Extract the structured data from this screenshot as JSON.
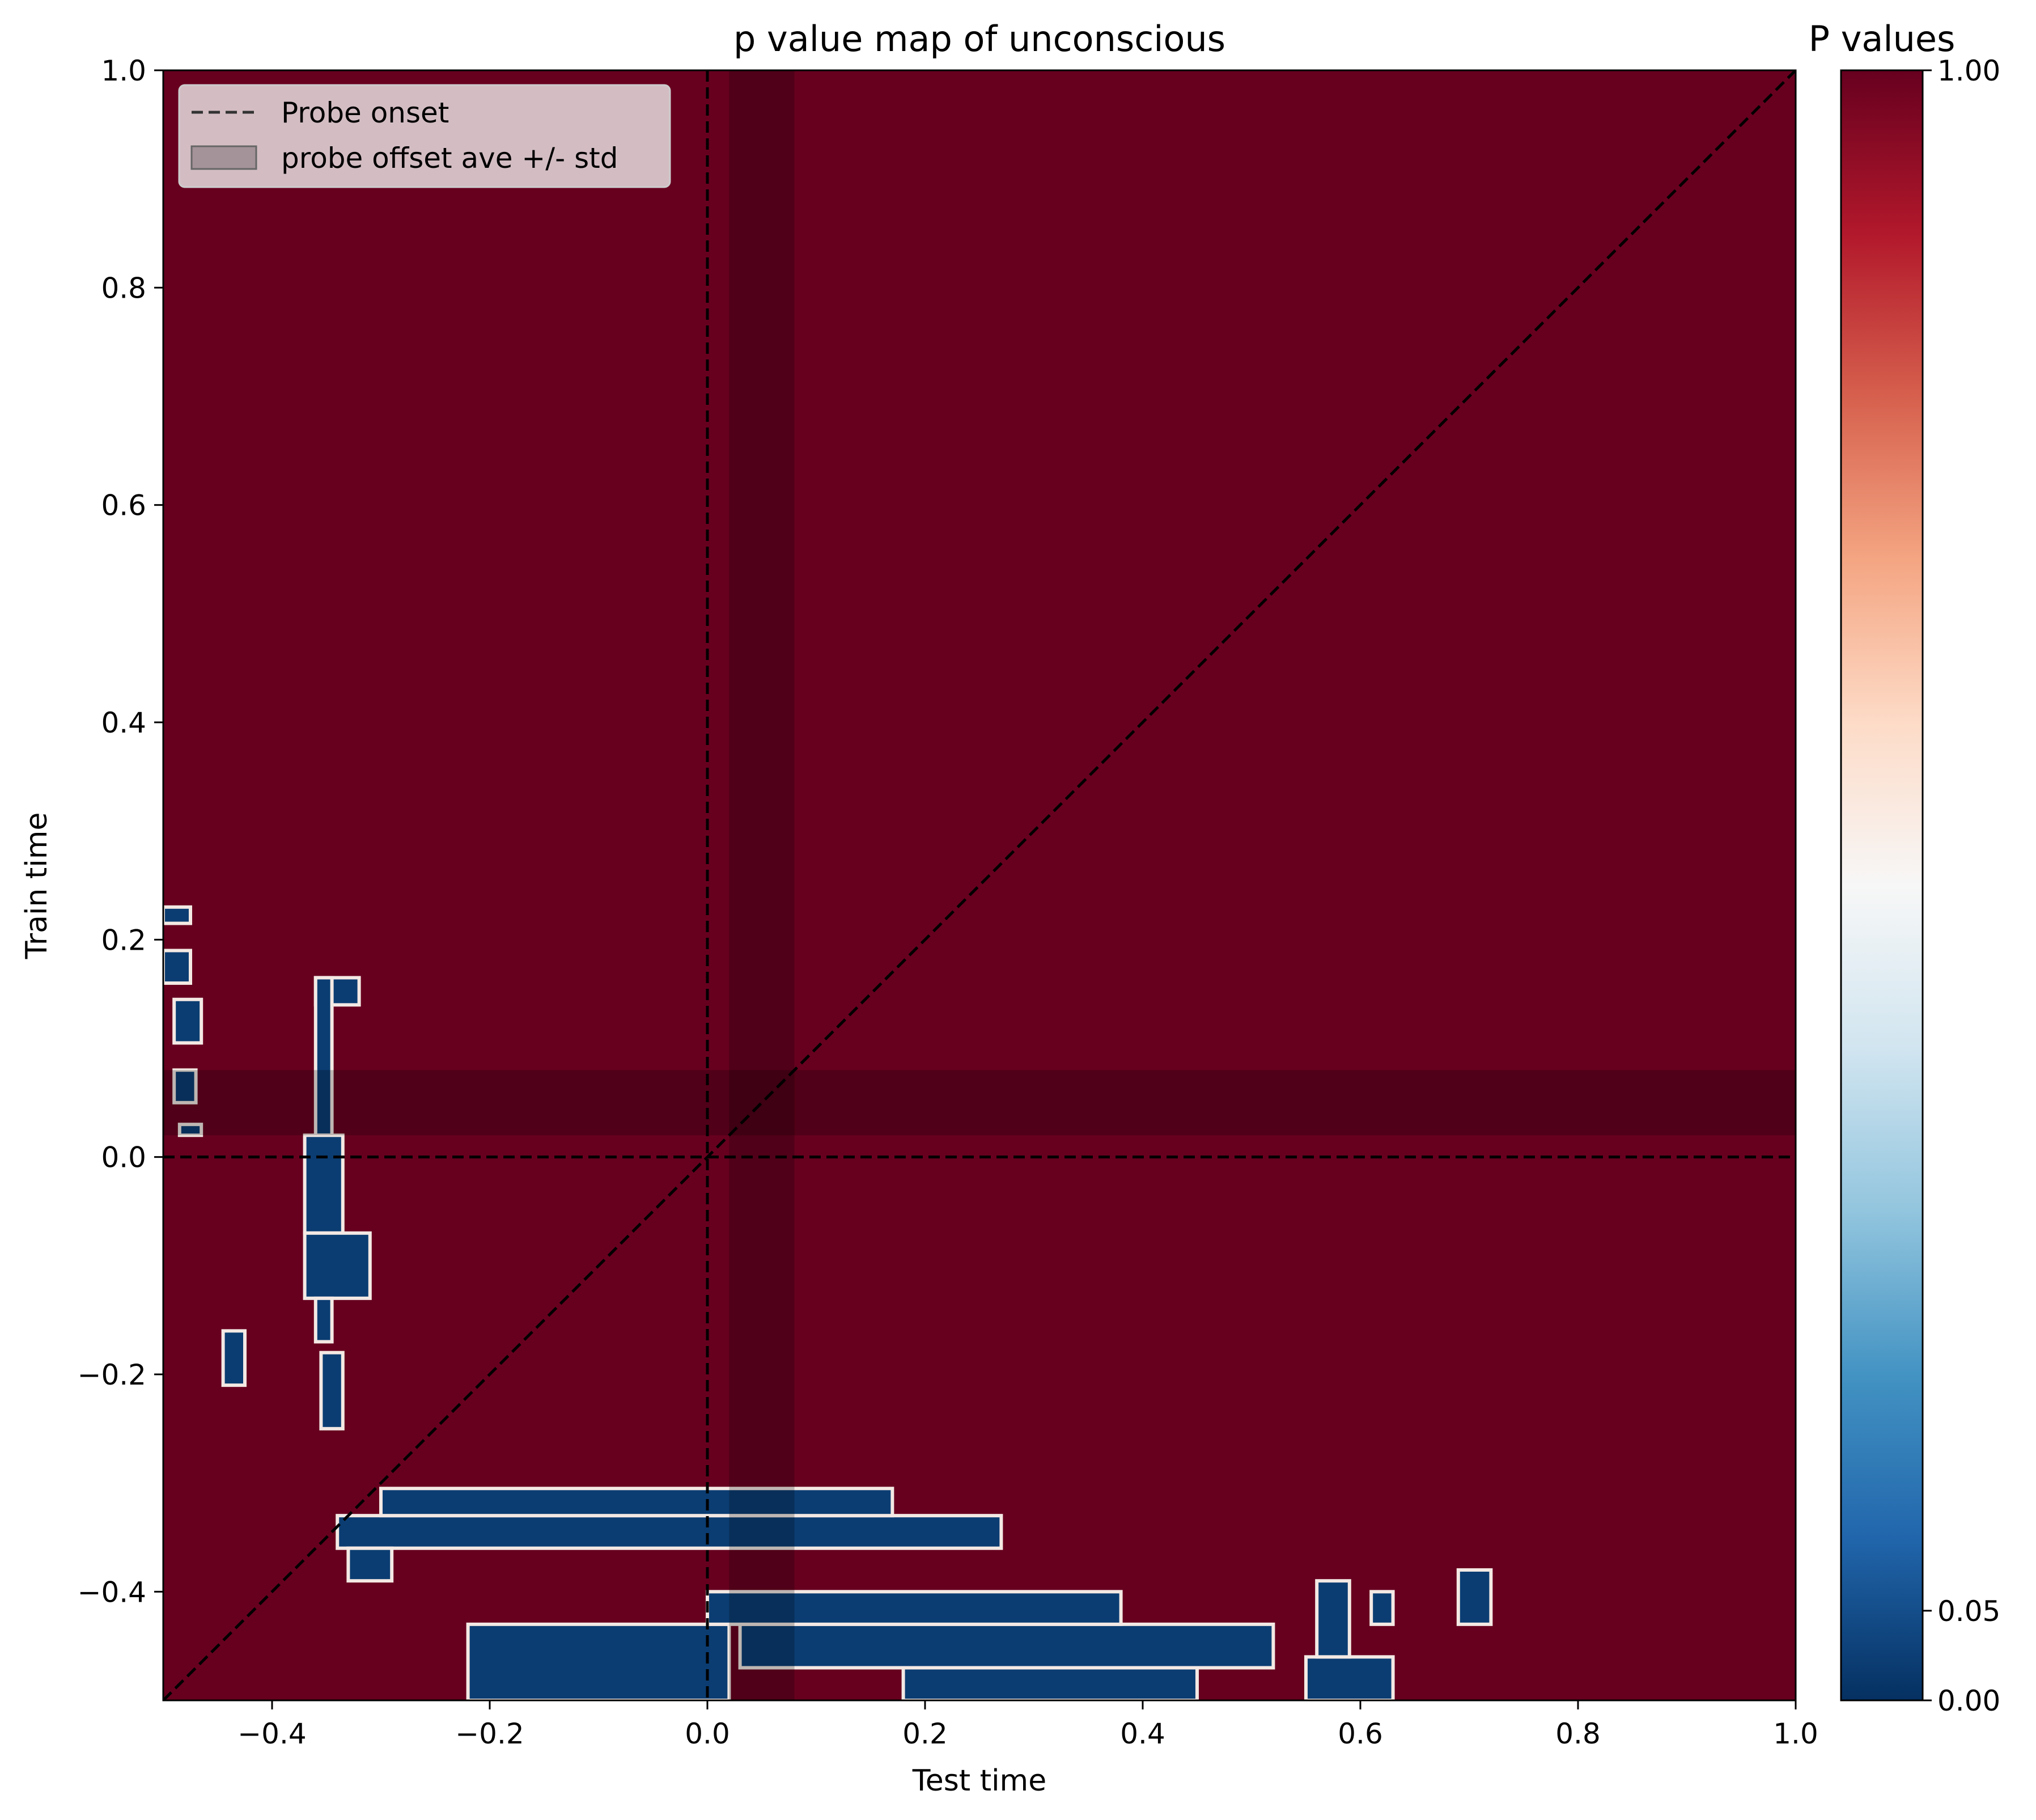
{
  "chart_data": {
    "type": "heatmap",
    "title": "p value map of unconscious",
    "xlabel": "Test time",
    "ylabel": "Train time",
    "xlim": [
      -0.5,
      1.0
    ],
    "ylim": [
      -0.5,
      1.0
    ],
    "x_ticks": [
      "−0.4",
      "−0.2",
      "0.0",
      "0.2",
      "0.4",
      "0.6",
      "0.8",
      "1.0"
    ],
    "x_tick_values": [
      -0.4,
      -0.2,
      0.0,
      0.2,
      0.4,
      0.6,
      0.8,
      1.0
    ],
    "y_ticks": [
      "−0.4",
      "−0.2",
      "0.0",
      "0.2",
      "0.4",
      "0.6",
      "0.8",
      "1.0"
    ],
    "y_tick_values": [
      -0.4,
      -0.2,
      0.0,
      0.2,
      0.4,
      0.6,
      0.8,
      1.0
    ],
    "background_p_value": 1.0,
    "significant_p_value": 0.0,
    "significant_regions": [
      {
        "x": [
          -0.5,
          -0.475
        ],
        "y": [
          0.215,
          0.23
        ]
      },
      {
        "x": [
          -0.5,
          -0.475
        ],
        "y": [
          0.16,
          0.19
        ]
      },
      {
        "x": [
          -0.49,
          -0.465
        ],
        "y": [
          0.105,
          0.145
        ]
      },
      {
        "x": [
          -0.49,
          -0.47
        ],
        "y": [
          0.05,
          0.08
        ]
      },
      {
        "x": [
          -0.485,
          -0.465
        ],
        "y": [
          0.02,
          0.03
        ]
      },
      {
        "x": [
          -0.36,
          -0.32
        ],
        "y": [
          0.14,
          0.165
        ]
      },
      {
        "x": [
          -0.36,
          -0.345
        ],
        "y": [
          0.02,
          0.165
        ]
      },
      {
        "x": [
          -0.37,
          -0.335
        ],
        "y": [
          -0.07,
          0.02
        ]
      },
      {
        "x": [
          -0.37,
          -0.31
        ],
        "y": [
          -0.13,
          -0.07
        ]
      },
      {
        "x": [
          -0.36,
          -0.345
        ],
        "y": [
          -0.17,
          -0.13
        ]
      },
      {
        "x": [
          -0.445,
          -0.425
        ],
        "y": [
          -0.21,
          -0.16
        ]
      },
      {
        "x": [
          -0.355,
          -0.335
        ],
        "y": [
          -0.25,
          -0.18
        ]
      },
      {
        "x": [
          -0.34,
          0.27
        ],
        "y": [
          -0.36,
          -0.33
        ]
      },
      {
        "x": [
          -0.3,
          0.17
        ],
        "y": [
          -0.33,
          -0.305
        ]
      },
      {
        "x": [
          -0.33,
          -0.29
        ],
        "y": [
          -0.39,
          -0.36
        ]
      },
      {
        "x": [
          -0.22,
          0.02
        ],
        "y": [
          -0.5,
          -0.43
        ]
      },
      {
        "x": [
          0.03,
          0.52
        ],
        "y": [
          -0.47,
          -0.43
        ]
      },
      {
        "x": [
          0.0,
          0.38
        ],
        "y": [
          -0.43,
          -0.4
        ]
      },
      {
        "x": [
          0.18,
          0.45
        ],
        "y": [
          -0.5,
          -0.47
        ]
      },
      {
        "x": [
          0.55,
          0.63
        ],
        "y": [
          -0.5,
          -0.46
        ]
      },
      {
        "x": [
          0.56,
          0.59
        ],
        "y": [
          -0.46,
          -0.39
        ]
      },
      {
        "x": [
          0.69,
          0.72
        ],
        "y": [
          -0.43,
          -0.38
        ]
      },
      {
        "x": [
          0.61,
          0.63
        ],
        "y": [
          -0.43,
          -0.4
        ]
      }
    ],
    "reference_lines": {
      "probe_onset_x": 0.0,
      "probe_onset_y": 0.0,
      "diagonal": true
    },
    "probe_offset_band": [
      0.02,
      0.08
    ],
    "legend": {
      "placement": "upper-left",
      "entries": [
        "Probe onset",
        "probe offset ave +/- std"
      ]
    },
    "colorbar": {
      "label": "P values",
      "tick_labels": [
        "1.00",
        "0.05",
        "0.00"
      ],
      "tick_values": [
        1.0,
        0.05,
        0.0
      ],
      "colormap": "RdBu_r",
      "colors": [
        "#053061",
        "#2166ac",
        "#4393c3",
        "#92c5de",
        "#d1e5f0",
        "#f7f7f7",
        "#fddbc7",
        "#f4a582",
        "#d6604d",
        "#b2182b",
        "#67001f"
      ]
    },
    "grid": false
  }
}
